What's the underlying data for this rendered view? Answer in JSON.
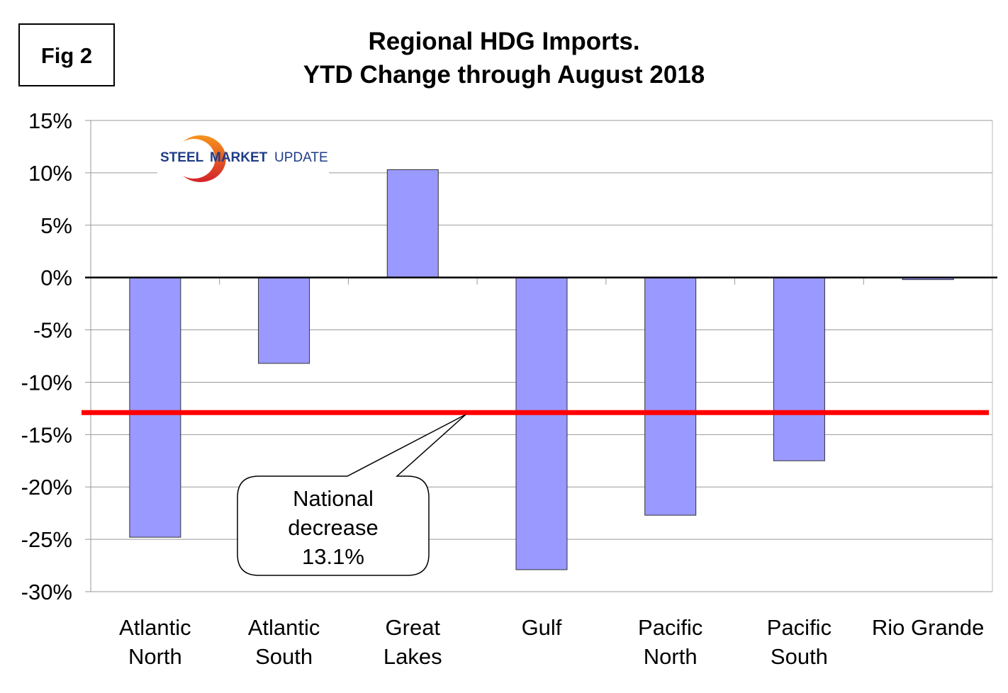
{
  "figure_label": "Fig 2",
  "logo": {
    "text_bold": "STEEL",
    "text_mid": "MARKET",
    "text_light": "UPDATE"
  },
  "chart_data": {
    "type": "bar",
    "title_line1": "Regional HDG Imports.",
    "title_line2": "YTD Change through August 2018",
    "categories": [
      [
        "Atlantic",
        "North"
      ],
      [
        "Atlantic",
        "South"
      ],
      [
        "Great",
        "Lakes"
      ],
      [
        "Gulf"
      ],
      [
        "Pacific",
        "North"
      ],
      [
        "Pacific",
        "South"
      ],
      [
        "Rio Grande"
      ]
    ],
    "values": [
      -24.8,
      -8.2,
      10.3,
      -27.9,
      -22.7,
      -17.5,
      -0.2
    ],
    "ylim": [
      -30,
      15
    ],
    "yticks": [
      15,
      10,
      5,
      0,
      -5,
      -10,
      -15,
      -20,
      -25,
      -30
    ],
    "ytick_labels": [
      "15%",
      "10%",
      "5%",
      "0%",
      "-5%",
      "-10%",
      "-15%",
      "-20%",
      "-25%",
      "-30%"
    ],
    "grid": true,
    "bar_color": "#9999ff",
    "reference_line": {
      "value": -13.1,
      "color": "#ff0000"
    },
    "annotation": [
      "National",
      "decrease",
      "13.1%"
    ]
  }
}
